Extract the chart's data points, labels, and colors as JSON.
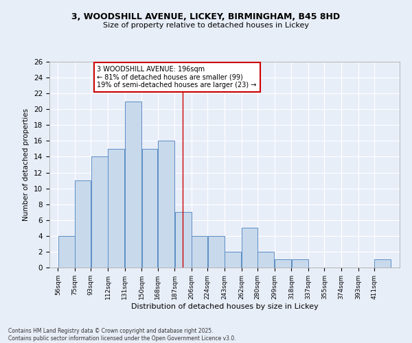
{
  "title1": "3, WOODSHILL AVENUE, LICKEY, BIRMINGHAM, B45 8HD",
  "title2": "Size of property relative to detached houses in Lickey",
  "xlabel": "Distribution of detached houses by size in Lickey",
  "ylabel": "Number of detached properties",
  "bins": [
    56,
    75,
    93,
    112,
    131,
    150,
    168,
    187,
    206,
    224,
    243,
    262,
    280,
    299,
    318,
    337,
    355,
    374,
    393,
    411,
    430
  ],
  "counts": [
    4,
    11,
    14,
    15,
    21,
    15,
    16,
    7,
    4,
    4,
    2,
    5,
    2,
    1,
    1,
    0,
    0,
    0,
    0,
    1
  ],
  "bar_color": "#c8d9ec",
  "bar_edge_color": "#5b8ec4",
  "background_color": "#e8eef8",
  "grid_color": "#ffffff",
  "ref_line_x": 196,
  "ref_line_color": "#cc0000",
  "annotation_text": "3 WOODSHILL AVENUE: 196sqm\n← 81% of detached houses are smaller (99)\n19% of semi-detached houses are larger (23) →",
  "annotation_box_color": "#ffffff",
  "annotation_box_edge": "#cc0000",
  "ylim": [
    0,
    26
  ],
  "yticks": [
    0,
    2,
    4,
    6,
    8,
    10,
    12,
    14,
    16,
    18,
    20,
    22,
    24,
    26
  ],
  "footer1": "Contains HM Land Registry data © Crown copyright and database right 2025.",
  "footer2": "Contains public sector information licensed under the Open Government Licence v3.0."
}
